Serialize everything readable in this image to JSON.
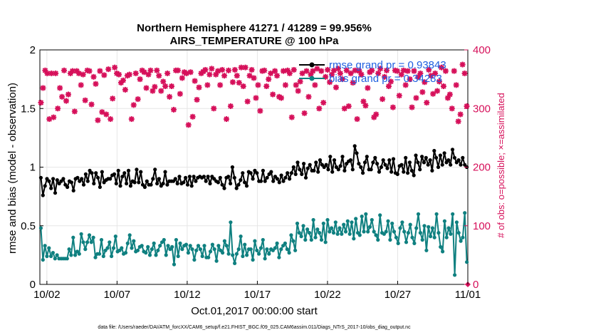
{
  "chart_data": {
    "type": "line",
    "title_line1": "Northern Hemisphere 41271 / 41289 = 99.956%",
    "title_line2": "AIRS_TEMPERATURE @ 100 hPa",
    "xlabel": "Oct.01,2017 00:00:00 start",
    "ylabel_left": "rmse and bias (model - observation)",
    "ylabel_right": "# of obs: o=possible; ×=assimilated",
    "x_tick_labels": [
      "10/02",
      "10/07",
      "10/12",
      "10/17",
      "10/22",
      "10/27",
      "11/01"
    ],
    "x_ticks_day": [
      1,
      6,
      11,
      16,
      21,
      26,
      31
    ],
    "xlim": [
      0.5,
      31
    ],
    "ylim_left": [
      0,
      2
    ],
    "yticks_left": [
      "0",
      "0.5",
      "1",
      "1.5",
      "2"
    ],
    "ylim_right": [
      0,
      400
    ],
    "yticks_right": [
      "0",
      "100",
      "200",
      "300",
      "400"
    ],
    "grid": true,
    "legend_position": "top-right",
    "legend": [
      {
        "label": "rmse grand pr = 0.93843",
        "color": "#000000"
      },
      {
        "label": "bias grand pr = 0.34283",
        "color": "#0f8080"
      }
    ],
    "footnote": "data file: /Users/raeder/DAI/ATM_forcXX/CAM6_setup/f.e21.FHIST_BGC.f09_025.CAM6assim.011/Diags_NTrS_2017-10/obs_diag_output.nc",
    "colors": {
      "rmse": "#000000",
      "bias": "#0f8080",
      "obs": "#d6105a",
      "grid": "#e6e6e6"
    },
    "series": [
      {
        "name": "rmse grand pr = 0.93843",
        "role": "rmse",
        "values": [
          0.91,
          0.76,
          0.84,
          0.9,
          0.88,
          0.82,
          0.9,
          0.78,
          0.89,
          0.86,
          0.88,
          0.9,
          0.85,
          0.83,
          0.88,
          0.87,
          0.8,
          0.9,
          0.91,
          0.88,
          0.9,
          0.85,
          0.94,
          0.88,
          0.97,
          0.95,
          0.86,
          0.95,
          0.91,
          0.83,
          0.96,
          0.87,
          0.89,
          0.9,
          0.9,
          0.93,
          0.94,
          0.86,
          0.97,
          0.84,
          0.92,
          0.95,
          0.86,
          0.97,
          0.84,
          0.88,
          0.87,
          0.98,
          0.87,
          0.96,
          0.85,
          0.83,
          0.88,
          0.85,
          0.85,
          0.9,
          0.98,
          0.86,
          0.9,
          0.84,
          0.86,
          0.96,
          0.85,
          0.88,
          0.88,
          0.88,
          0.9,
          0.86,
          0.92,
          0.86,
          0.87,
          0.91,
          0.85,
          0.92,
          0.84,
          0.92,
          0.88,
          0.91,
          0.92,
          0.91,
          0.92,
          0.88,
          0.92,
          0.86,
          0.92,
          0.9,
          0.88,
          0.87,
          0.91,
          0.85,
          0.82,
          0.91,
          0.92,
          0.86,
          1.0,
          0.91,
          0.82,
          0.85,
          0.89,
          0.95,
          0.87,
          0.84,
          0.96,
          0.95,
          0.9,
          0.97,
          0.95,
          0.88,
          0.88,
          0.97,
          0.88,
          0.91,
          0.94,
          0.96,
          0.88,
          0.92,
          0.9,
          0.87,
          0.93,
          0.88,
          0.91,
          0.95,
          0.9,
          0.95,
          1.0,
          0.94,
          1.04,
          0.98,
          0.94,
          1.03,
          0.91,
          0.99,
          1.02,
          0.97,
          0.97,
          1.04,
          0.96,
          1.06,
          1.02,
          1.0,
          1.02,
          0.98,
          1.09,
          0.96,
          1.06,
          1.0,
          0.98,
          1.01,
          1.09,
          0.97,
          1.03,
          1.05,
          1.06,
          0.98,
          1.18,
          1.12,
          1.03,
          1.0,
          0.95,
          1.04,
          1.09,
          0.98,
          0.98,
          1.04,
          1.08,
          1.03,
          0.96,
          1.0,
          1.06,
          1.02,
          0.99,
          1.06,
          0.96,
          1.07,
          0.95,
          0.94,
          1.01,
          1.02,
          0.96,
          1.08,
          0.95,
          1.04,
          0.97,
          0.93,
          1.1,
          1.04,
          0.98,
          1.09,
          1.04,
          1.08,
          1.02,
          1.06,
          0.97,
          1.14,
          1.08,
          1.0,
          1.1,
          1.02,
          1.12,
          1.04,
          1.06,
          1.02,
          1.15,
          1.08,
          1.04,
          1.06,
          1.02,
          1.08,
          1.02,
          1.0
        ]
      },
      {
        "name": "bias grand pr = 0.34283",
        "role": "bias",
        "values": [
          0.48,
          0.21,
          0.33,
          0.24,
          0.31,
          0.24,
          0.27,
          0.22,
          0.25,
          0.22,
          0.22,
          0.22,
          0.22,
          0.22,
          0.3,
          0.25,
          0.4,
          0.25,
          0.28,
          0.26,
          0.43,
          0.36,
          0.3,
          0.36,
          0.42,
          0.36,
          0.4,
          0.23,
          0.26,
          0.26,
          0.38,
          0.24,
          0.29,
          0.31,
          0.36,
          0.24,
          0.31,
          0.41,
          0.28,
          0.29,
          0.31,
          0.26,
          0.27,
          0.35,
          0.42,
          0.31,
          0.37,
          0.28,
          0.29,
          0.32,
          0.33,
          0.28,
          0.27,
          0.32,
          0.25,
          0.3,
          0.35,
          0.25,
          0.29,
          0.33,
          0.36,
          0.38,
          0.25,
          0.33,
          0.3,
          0.32,
          0.17,
          0.38,
          0.24,
          0.35,
          0.3,
          0.33,
          0.34,
          0.27,
          0.33,
          0.3,
          0.21,
          0.29,
          0.33,
          0.3,
          0.24,
          0.33,
          0.23,
          0.23,
          0.28,
          0.34,
          0.3,
          0.2,
          0.33,
          0.29,
          0.27,
          0.37,
          0.33,
          0.26,
          0.53,
          0.25,
          0.18,
          0.26,
          0.3,
          0.41,
          0.24,
          0.34,
          0.25,
          0.3,
          0.3,
          0.21,
          0.37,
          0.29,
          0.26,
          0.31,
          0.38,
          0.22,
          0.3,
          0.26,
          0.3,
          0.29,
          0.31,
          0.35,
          0.23,
          0.3,
          0.33,
          0.35,
          0.3,
          0.27,
          0.42,
          0.37,
          0.29,
          0.52,
          0.44,
          0.41,
          0.5,
          0.38,
          0.47,
          0.44,
          0.38,
          0.55,
          0.4,
          0.47,
          0.44,
          0.38,
          0.52,
          0.36,
          0.55,
          0.45,
          0.48,
          0.44,
          0.53,
          0.43,
          0.48,
          0.43,
          0.51,
          0.45,
          0.54,
          0.43,
          0.53,
          0.39,
          0.56,
          0.44,
          0.42,
          0.58,
          0.45,
          0.6,
          0.45,
          0.49,
          0.55,
          0.45,
          0.42,
          0.38,
          0.59,
          0.44,
          0.43,
          0.45,
          0.54,
          0.38,
          0.52,
          0.45,
          0.4,
          0.35,
          0.48,
          0.53,
          0.45,
          0.36,
          0.44,
          0.51,
          0.4,
          0.35,
          0.48,
          0.6,
          0.44,
          0.38,
          0.5,
          0.29,
          0.49,
          0.41,
          0.48,
          0.4,
          0.6,
          0.44,
          0.32,
          0.28,
          0.54,
          0.4,
          0.48,
          0.43,
          0.6,
          0.08,
          0.53,
          0.44,
          0.37,
          0.4,
          0.61,
          0.19
        ]
      },
      {
        "name": "assimilated",
        "role": "obs_assimilated",
        "values": [
          310,
          335,
          365,
          360,
          282,
          360,
          285,
          360,
          300,
          335,
          320,
          365,
          313,
          324,
          360,
          364,
          295,
          364,
          360,
          340,
          358,
          314,
          365,
          364,
          307,
          354,
          342,
          280,
          364,
          294,
          357,
          290,
          367,
          282,
          317,
          370,
          360,
          358,
          344,
          348,
          332,
          356,
          358,
          282,
          306,
          360,
          316,
          350,
          365,
          362,
          335,
          358,
          365,
          330,
          337,
          365,
          356,
          330,
          346,
          338,
          360,
          320,
          338,
          298,
          365,
          365,
          325,
          352,
          362,
          360,
          272,
          362,
          286,
          347,
          315,
          336,
          360,
          363,
          366,
          340,
          358,
          368,
          300,
          358,
          364,
          340,
          366,
          356,
          282,
          365,
          304,
          345,
          366,
          356,
          344,
          370,
          338,
          370,
          312,
          356,
          366,
          352,
          318,
          340,
          296,
          364,
          365,
          338,
          350,
          360,
          324,
          364,
          356,
          320,
          318,
          364,
          340,
          365,
          360,
          285,
          366,
          340,
          330,
          346,
          360,
          292,
          364,
          320,
          358,
          364,
          340,
          368,
          300,
          364,
          310,
          354,
          366,
          345,
          358,
          365,
          336,
          368,
          360,
          350,
          300,
          365,
          304,
          360,
          344,
          365,
          282,
          364,
          358,
          312,
          305,
          335,
          362,
          365,
          285,
          290,
          360,
          368,
          316,
          354,
          365,
          338,
          346,
          302,
          365,
          364,
          322,
          358,
          365,
          340,
          364,
          350,
          302,
          364,
          318,
          354,
          360,
          328,
          345,
          310,
          366,
          356,
          325,
          360,
          330,
          346,
          370,
          338,
          364,
          318,
          324,
          300,
          364,
          340,
          278,
          290,
          375,
          360,
          304
        ]
      },
      {
        "name": "possible",
        "role": "obs_possible",
        "values": []
      }
    ]
  }
}
